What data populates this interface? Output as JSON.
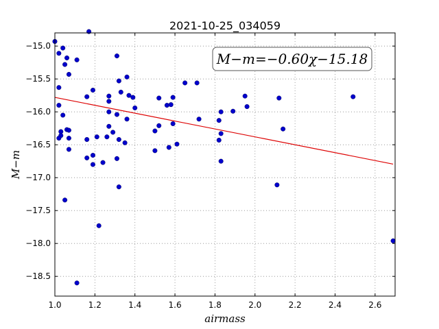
{
  "chart_data": {
    "type": "scatter",
    "title": "2021-10-25_034059",
    "xlabel": "airmass",
    "ylabel": "M−m",
    "xlim": [
      1.0,
      2.7
    ],
    "ylim": [
      -18.8,
      -14.8
    ],
    "x_ticks": [
      "1.0",
      "1.2",
      "1.4",
      "1.6",
      "1.8",
      "2.0",
      "2.2",
      "2.4",
      "2.6"
    ],
    "y_ticks": [
      "−15.0",
      "−15.5",
      "−16.0",
      "−16.5",
      "−17.0",
      "−17.5",
      "−18.0",
      "−18.5"
    ],
    "grid": true,
    "fit_label": "M−m=−0.60χ−15.18",
    "fit": {
      "slope": -0.6,
      "intercept": -15.18,
      "x_range": [
        1.0,
        2.69
      ]
    },
    "colors": {
      "points": "#0000cc",
      "fit": "#dd0000"
    },
    "points": [
      {
        "x": 1.0,
        "y": -14.93
      },
      {
        "x": 1.02,
        "y": -15.11
      },
      {
        "x": 1.04,
        "y": -15.03
      },
      {
        "x": 1.06,
        "y": -15.18
      },
      {
        "x": 1.05,
        "y": -15.28
      },
      {
        "x": 1.07,
        "y": -15.43
      },
      {
        "x": 1.11,
        "y": -15.21
      },
      {
        "x": 1.17,
        "y": -14.78
      },
      {
        "x": 1.02,
        "y": -15.63
      },
      {
        "x": 1.02,
        "y": -15.9
      },
      {
        "x": 1.04,
        "y": -16.05
      },
      {
        "x": 1.03,
        "y": -16.3
      },
      {
        "x": 1.03,
        "y": -16.36
      },
      {
        "x": 1.02,
        "y": -16.4
      },
      {
        "x": 1.06,
        "y": -16.27
      },
      {
        "x": 1.07,
        "y": -16.28
      },
      {
        "x": 1.07,
        "y": -16.4
      },
      {
        "x": 1.07,
        "y": -16.57
      },
      {
        "x": 1.05,
        "y": -17.34
      },
      {
        "x": 1.19,
        "y": -15.67
      },
      {
        "x": 1.16,
        "y": -15.77
      },
      {
        "x": 1.16,
        "y": -16.42
      },
      {
        "x": 1.16,
        "y": -16.7
      },
      {
        "x": 1.19,
        "y": -16.66
      },
      {
        "x": 1.19,
        "y": -16.8
      },
      {
        "x": 1.21,
        "y": -16.38
      },
      {
        "x": 1.22,
        "y": -17.73
      },
      {
        "x": 1.11,
        "y": -18.6
      },
      {
        "x": 1.24,
        "y": -16.77
      },
      {
        "x": 1.26,
        "y": -16.38
      },
      {
        "x": 1.27,
        "y": -16.0
      },
      {
        "x": 1.27,
        "y": -15.76
      },
      {
        "x": 1.27,
        "y": -15.84
      },
      {
        "x": 1.27,
        "y": -16.22
      },
      {
        "x": 1.29,
        "y": -16.31
      },
      {
        "x": 1.31,
        "y": -15.15
      },
      {
        "x": 1.32,
        "y": -15.53
      },
      {
        "x": 1.31,
        "y": -16.04
      },
      {
        "x": 1.32,
        "y": -16.42
      },
      {
        "x": 1.31,
        "y": -16.71
      },
      {
        "x": 1.33,
        "y": -15.7
      },
      {
        "x": 1.32,
        "y": -17.14
      },
      {
        "x": 1.36,
        "y": -15.47
      },
      {
        "x": 1.37,
        "y": -15.75
      },
      {
        "x": 1.39,
        "y": -15.78
      },
      {
        "x": 1.36,
        "y": -16.11
      },
      {
        "x": 1.35,
        "y": -16.47
      },
      {
        "x": 1.4,
        "y": -15.94
      },
      {
        "x": 1.5,
        "y": -16.29
      },
      {
        "x": 1.5,
        "y": -16.59
      },
      {
        "x": 1.52,
        "y": -15.79
      },
      {
        "x": 1.52,
        "y": -16.21
      },
      {
        "x": 1.56,
        "y": -15.9
      },
      {
        "x": 1.58,
        "y": -15.89
      },
      {
        "x": 1.59,
        "y": -15.78
      },
      {
        "x": 1.59,
        "y": -16.18
      },
      {
        "x": 1.61,
        "y": -16.49
      },
      {
        "x": 1.57,
        "y": -16.54
      },
      {
        "x": 1.65,
        "y": -15.56
      },
      {
        "x": 1.71,
        "y": -15.56
      },
      {
        "x": 1.72,
        "y": -16.11
      },
      {
        "x": 1.82,
        "y": -16.13
      },
      {
        "x": 1.83,
        "y": -16.0
      },
      {
        "x": 1.83,
        "y": -16.33
      },
      {
        "x": 1.82,
        "y": -16.43
      },
      {
        "x": 1.83,
        "y": -16.75
      },
      {
        "x": 1.89,
        "y": -15.99
      },
      {
        "x": 1.95,
        "y": -15.76
      },
      {
        "x": 1.96,
        "y": -15.92
      },
      {
        "x": 2.12,
        "y": -15.79
      },
      {
        "x": 2.14,
        "y": -16.26
      },
      {
        "x": 2.11,
        "y": -17.11
      },
      {
        "x": 2.49,
        "y": -15.77
      },
      {
        "x": 2.69,
        "y": -17.96
      }
    ]
  }
}
